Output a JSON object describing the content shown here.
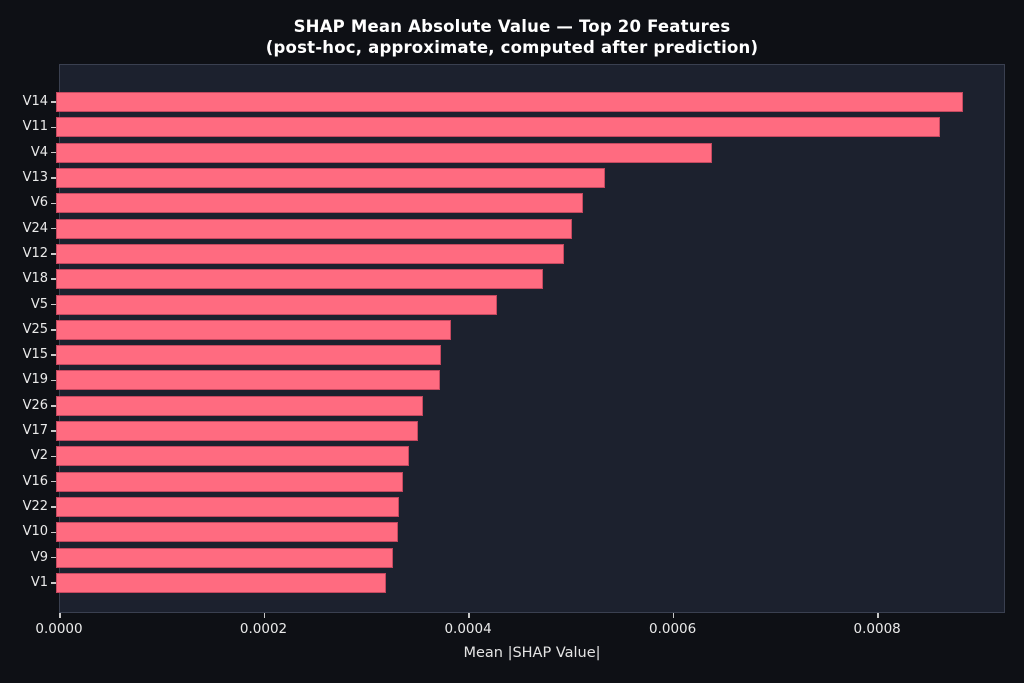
{
  "header": {
    "title": "SHAP Mean Absolute Value — Top 20 Features",
    "subtitle": "(post-hoc, approximate, computed after prediction)"
  },
  "chart_data": {
    "type": "bar",
    "orientation": "horizontal",
    "title": "SHAP Mean Absolute Value — Top 20 Features (post-hoc, approximate, computed after prediction)",
    "xlabel": "Mean |SHAP Value|",
    "ylabel": "",
    "categories": [
      "V14",
      "V11",
      "V4",
      "V13",
      "V6",
      "V24",
      "V12",
      "V18",
      "V5",
      "V25",
      "V15",
      "V19",
      "V26",
      "V17",
      "V2",
      "V16",
      "V22",
      "V10",
      "V9",
      "V1"
    ],
    "values": [
      0.000884,
      0.000862,
      0.000639,
      0.000535,
      0.000514,
      0.000503,
      0.000495,
      0.000475,
      0.00043,
      0.000385,
      0.000375,
      0.000374,
      0.000358,
      0.000353,
      0.000344,
      0.000338,
      0.000334,
      0.000333,
      0.000328,
      0.000322
    ],
    "xlim": [
      0,
      0.000925
    ],
    "x_ticks": [
      0,
      0.0002,
      0.0004,
      0.0006,
      0.0008
    ],
    "x_tick_labels": [
      "0.0000",
      "0.0002",
      "0.0004",
      "0.0006",
      "0.0008"
    ],
    "grid": false,
    "legend": false,
    "colors": {
      "bar_fill": "#ff6b80",
      "bar_edge": "#963046",
      "plot_background": "#1c212e",
      "figure_background": "#0e1015",
      "text": "#ffffff",
      "spine": "#3a4050"
    }
  }
}
